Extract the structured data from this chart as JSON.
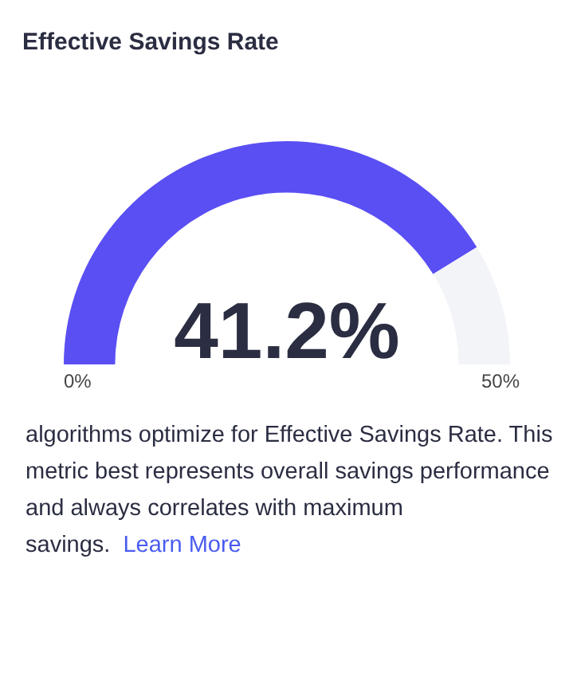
{
  "chart_data": {
    "type": "donut",
    "title": "Effective Savings Rate",
    "categories": [
      null,
      null
    ],
    "values": [
      41.2,
      8.8
    ],
    "colors": [
      "#5a4ff3",
      "#f3f4f8"
    ],
    "value_labels": [
      "41.2%",
      null
    ],
    "legend": false,
    "annotations": [
      "0%",
      "50%",
      "algorithms optimize for Effective Savings Rate. This metric best represents overall savings performance and always correlates with maximum savings.",
      "Learn More"
    ]
  }
}
